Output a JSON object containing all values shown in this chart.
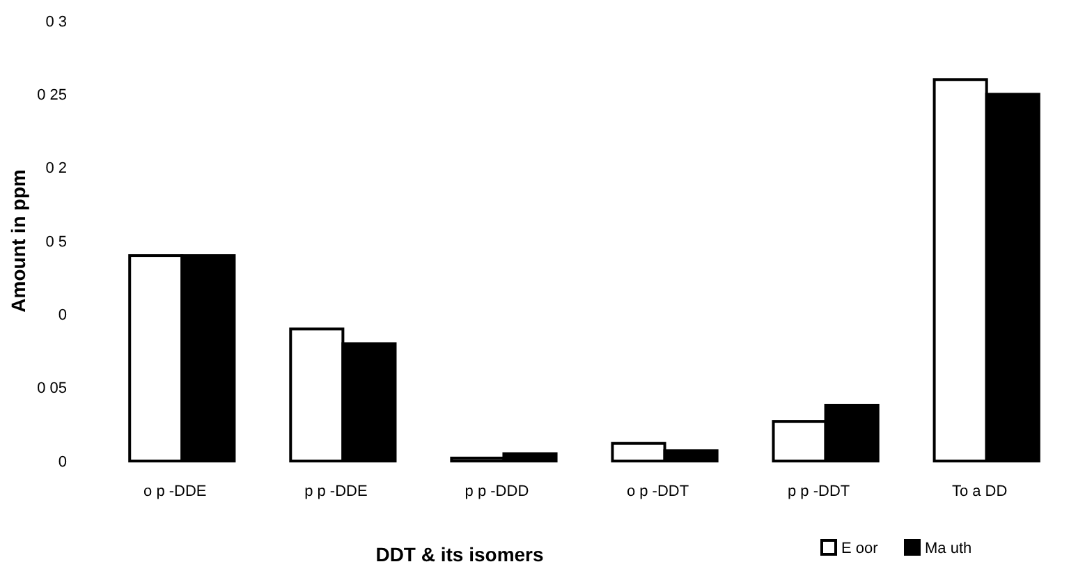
{
  "chart_data": {
    "type": "bar",
    "xlabel": "DDT & its isomers",
    "ylabel": "Amount in ppm",
    "categories": [
      "o p -DDE",
      "p p -DDE",
      "p p -DDD",
      "o p -DDT",
      "p p -DDT",
      "To a DD"
    ],
    "series": [
      {
        "name": "E oor",
        "color": "#ffffff",
        "values": [
          0.14,
          0.09,
          0.002,
          0.012,
          0.027,
          0.26
        ]
      },
      {
        "name": "Ma uth",
        "color": "#000000",
        "values": [
          0.14,
          0.08,
          0.005,
          0.007,
          0.038,
          0.25
        ]
      }
    ],
    "ylim": [
      0,
      0.3
    ],
    "yticks": [
      {
        "value": 0,
        "label": "0"
      },
      {
        "value": 0.05,
        "label": "0 05"
      },
      {
        "value": 0.1,
        "label": "0"
      },
      {
        "value": 0.15,
        "label": "0 5"
      },
      {
        "value": 0.2,
        "label": "0 2"
      },
      {
        "value": 0.25,
        "label": "0 25"
      },
      {
        "value": 0.3,
        "label": "0 3"
      }
    ],
    "grid": false,
    "legend": "bottom right"
  }
}
